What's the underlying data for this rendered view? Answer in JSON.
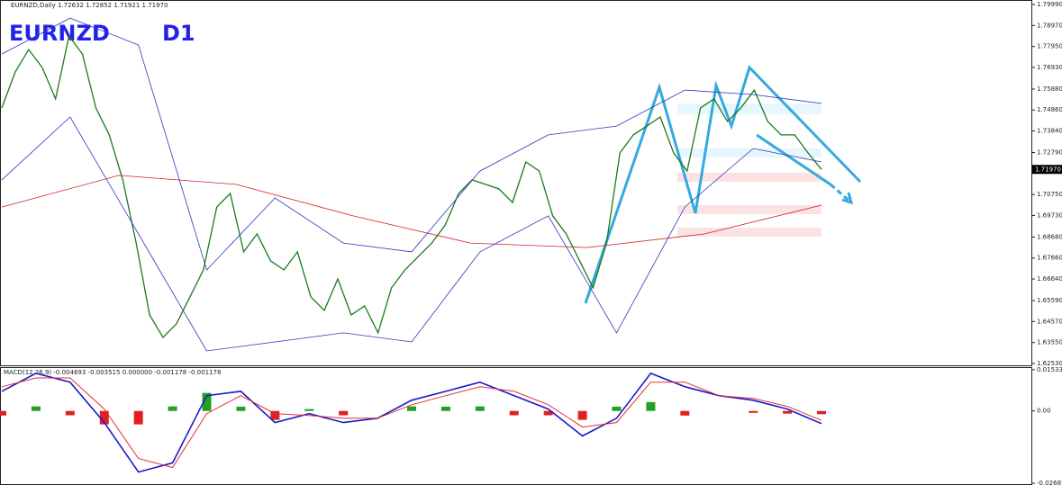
{
  "header": "EURNZD,Daily  1.72632 1.72852 1.71921 1.71970",
  "chart_data": [
    {
      "type": "line",
      "title": "EURNZD",
      "subtitle": "D1",
      "ylim": [
        1.6244,
        1.8021
      ],
      "yticks": [
        {
          "value": 1.7999,
          "label": "1.79990"
        },
        {
          "value": 1.7897,
          "label": "1.78970"
        },
        {
          "value": 1.7795,
          "label": "1.77950"
        },
        {
          "value": 1.7693,
          "label": "1.76930"
        },
        {
          "value": 1.7588,
          "label": "1.75880"
        },
        {
          "value": 1.7486,
          "label": "1.74860"
        },
        {
          "value": 1.7384,
          "label": "1.73840"
        },
        {
          "value": 1.7279,
          "label": "1.72790"
        },
        {
          "value": 1.7075,
          "label": "1.70750"
        },
        {
          "value": 1.6973,
          "label": "1.69730"
        },
        {
          "value": 1.6868,
          "label": "1.68680"
        },
        {
          "value": 1.6766,
          "label": "1.67660"
        },
        {
          "value": 1.6664,
          "label": "1.66640"
        },
        {
          "value": 1.6559,
          "label": "1.65590"
        },
        {
          "value": 1.6457,
          "label": "1.64570"
        },
        {
          "value": 1.6355,
          "label": "1.63550"
        },
        {
          "value": 1.6253,
          "label": "1.62530"
        }
      ],
      "current_price": {
        "value": 1.7197,
        "label": "1.71970"
      },
      "series": [
        {
          "color": "#1a7a1a",
          "values": [
            1.7496,
            1.7671,
            1.778,
            1.7693,
            1.754,
            1.7846,
            1.7758,
            1.7496,
            1.7365,
            1.7146,
            1.6839,
            1.6489,
            1.638,
            1.6446,
            1.6577,
            1.6708,
            1.7014,
            1.708,
            1.6796,
            1.6883,
            1.6752,
            1.6708,
            1.6796,
            1.6577,
            1.6511,
            1.6664,
            1.6489,
            1.6533,
            1.6402,
            1.6621,
            1.6708,
            1.6774,
            1.6839,
            1.6927,
            1.708,
            1.7146,
            1.7124,
            1.7102,
            1.7036,
            1.7233,
            1.7189,
            1.6971,
            1.6883,
            1.6752,
            1.6621,
            1.6839,
            1.7277,
            1.7365,
            1.7408,
            1.7452,
            1.7277,
            1.7189,
            1.7496,
            1.754,
            1.743,
            1.7496,
            1.7583,
            1.743,
            1.7365,
            1.7365,
            1.7277,
            1.7197
          ]
        },
        {
          "color": "#d42020",
          "values": [
            1.7014,
            1.7168,
            1.7124,
            1.6971,
            1.6839,
            1.6817,
            1.6883,
            1.7023
          ]
        },
        {
          "color": "#3333bb",
          "values": [
            1.7758,
            1.7933,
            1.7802,
            1.6708,
            1.7058,
            1.6839,
            1.6796,
            1.7189,
            1.7365,
            1.7408,
            1.7583,
            1.7561,
            1.7518
          ]
        },
        {
          "color": "#3333bb",
          "values": [
            1.7146,
            1.7452,
            1.6883,
            1.6314,
            1.6358,
            1.6402,
            1.6358,
            1.6796,
            1.6971,
            1.6402,
            1.7014,
            1.7299,
            1.7233
          ]
        }
      ]
    },
    {
      "type": "macd",
      "title": "MACD(12,26,9) -0.004693 -0.003515 0.000000 -0.001178 -0.001178",
      "ylim": [
        -0.0272,
        0.0163
      ],
      "yticks": [
        {
          "value": 0.015333,
          "label": "0.015333"
        },
        {
          "value": 0,
          "label": "0.00"
        },
        {
          "value": -0.026875,
          "label": "-0.026875"
        }
      ],
      "series": [
        {
          "color": "#1a1acc",
          "values": [
            0.0073,
            0.014,
            0.0107,
            -0.0043,
            -0.0227,
            -0.0193,
            0.0057,
            0.0073,
            -0.0043,
            -0.001,
            -0.0043,
            -0.0027,
            0.004,
            0.0073,
            0.0107,
            0.0057,
            0.0007,
            -0.0093,
            -0.0027,
            0.014,
            0.009,
            0.0057,
            0.004,
            0.0007,
            -0.0047
          ]
        },
        {
          "color": "#e03030",
          "values": [
            0.009,
            0.0123,
            0.0123,
            0.0007,
            -0.0177,
            -0.021,
            -0.001,
            0.0057,
            -0.001,
            -0.0017,
            -0.0027,
            -0.0027,
            0.0023,
            0.0057,
            0.009,
            0.0073,
            0.0023,
            -0.006,
            -0.0043,
            0.0107,
            0.0107,
            0.0057,
            0.0047,
            0.0017,
            -0.0035
          ]
        },
        {
          "color": "#22a022",
          "values": [
            -0.0017,
            0.0017,
            -0.0016,
            -0.005,
            -0.005,
            0.0017,
            0.0067,
            0.0016,
            -0.0033,
            0.0007,
            -0.0016,
            0,
            0.0017,
            0.0016,
            0.0017,
            -0.0016,
            -0.0016,
            -0.0033,
            0.0016,
            0.0033,
            -0.0017,
            0,
            -0.0007,
            -0.001,
            -0.0012
          ]
        }
      ]
    }
  ]
}
